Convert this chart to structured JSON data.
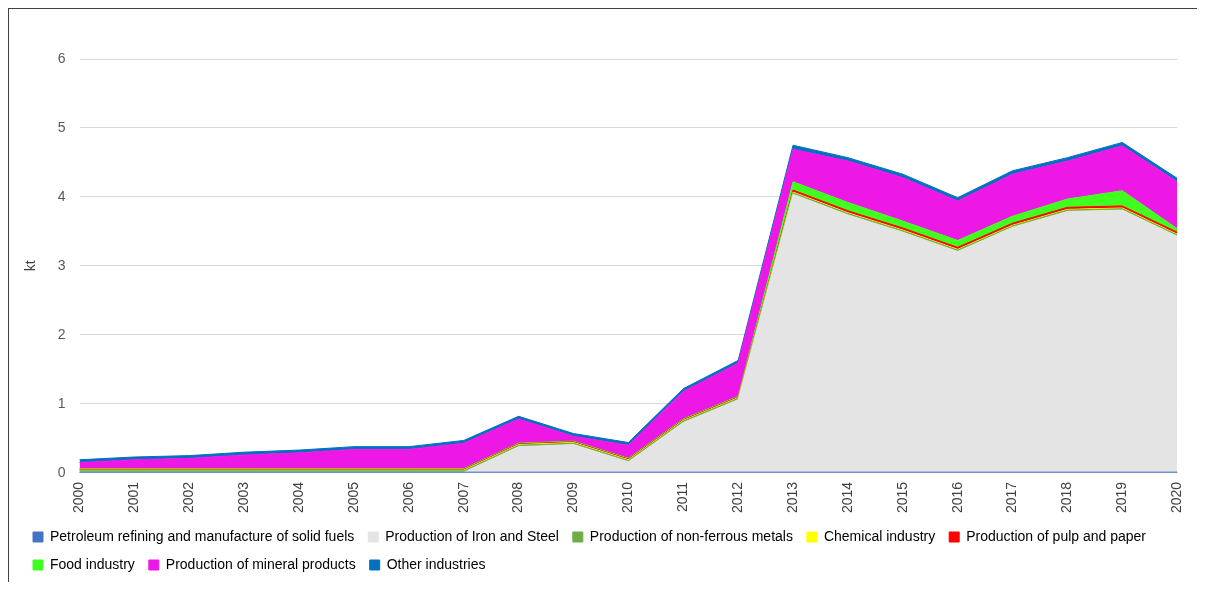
{
  "chart_data": {
    "type": "area",
    "stacked": true,
    "ylabel": "kt",
    "ylim": [
      0,
      6
    ],
    "yticks": [
      0,
      1,
      2,
      3,
      4,
      5,
      6
    ],
    "grid": "y",
    "legend": "bottom",
    "marker": "none",
    "categories": [
      "2000",
      "2001",
      "2002",
      "2003",
      "2004",
      "2005",
      "2006",
      "2007",
      "2008",
      "2009",
      "2010",
      "2011",
      "2012",
      "2013",
      "2014",
      "2015",
      "2016",
      "2017",
      "2018",
      "2019",
      "2020"
    ],
    "series": [
      {
        "name": "Petroleum refining and manufacture of solid fuels",
        "color": "#4472c4",
        "values": [
          0.01,
          0.01,
          0.01,
          0.01,
          0.01,
          0.01,
          0.01,
          0.01,
          0.01,
          0.01,
          0.01,
          0.01,
          0.01,
          0.01,
          0.01,
          0.01,
          0.01,
          0.01,
          0.01,
          0.01,
          0.01
        ]
      },
      {
        "name": "Production of Iron and Steel",
        "color": "#e4e4e4",
        "values": [
          0,
          0,
          0,
          0,
          0,
          0,
          0,
          0,
          0.37,
          0.4,
          0.15,
          0.72,
          1.05,
          4.03,
          3.73,
          3.48,
          3.2,
          3.55,
          3.78,
          3.8,
          3.42
        ]
      },
      {
        "name": "Production of non-ferrous metals",
        "color": "#70ad47",
        "values": [
          0.02,
          0.02,
          0.02,
          0.02,
          0.02,
          0.02,
          0.02,
          0.02,
          0.02,
          0.02,
          0.02,
          0.02,
          0.02,
          0.02,
          0.02,
          0.02,
          0.02,
          0.02,
          0.02,
          0.02,
          0.02
        ]
      },
      {
        "name": "Chemical industry",
        "color": "#ffff00",
        "values": [
          0.01,
          0.01,
          0.01,
          0.01,
          0.01,
          0.01,
          0.01,
          0.01,
          0.01,
          0.01,
          0.01,
          0.01,
          0.01,
          0.01,
          0.01,
          0.01,
          0.01,
          0.01,
          0.01,
          0.01,
          0.01
        ]
      },
      {
        "name": "Production of pulp and paper",
        "color": "#ff0000",
        "values": [
          0.01,
          0.01,
          0.01,
          0.01,
          0.01,
          0.01,
          0.01,
          0.01,
          0.01,
          0.01,
          0.01,
          0.01,
          0.01,
          0.03,
          0.03,
          0.03,
          0.03,
          0.03,
          0.03,
          0.03,
          0.03
        ]
      },
      {
        "name": "Food industry",
        "color": "#40ff20",
        "values": [
          0.01,
          0.01,
          0.01,
          0.01,
          0.01,
          0.01,
          0.01,
          0.01,
          0.01,
          0.01,
          0.01,
          0.01,
          0.01,
          0.12,
          0.12,
          0.1,
          0.1,
          0.1,
          0.12,
          0.22,
          0.05
        ]
      },
      {
        "name": "Production of mineral products",
        "color": "#ee18e6",
        "values": [
          0.09,
          0.13,
          0.15,
          0.2,
          0.23,
          0.28,
          0.28,
          0.37,
          0.35,
          0.07,
          0.19,
          0.4,
          0.48,
          0.47,
          0.6,
          0.63,
          0.57,
          0.61,
          0.55,
          0.65,
          0.68
        ]
      },
      {
        "name": "Other industries",
        "color": "#0070c0",
        "values": [
          0.04,
          0.04,
          0.04,
          0.04,
          0.04,
          0.04,
          0.04,
          0.04,
          0.04,
          0.04,
          0.04,
          0.04,
          0.04,
          0.06,
          0.05,
          0.05,
          0.05,
          0.05,
          0.05,
          0.05,
          0.05
        ]
      }
    ]
  }
}
